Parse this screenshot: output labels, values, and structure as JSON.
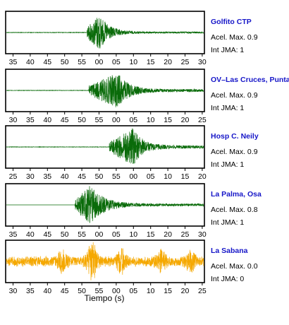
{
  "chart_data": {
    "type": "line",
    "xlabel": "Tiempo (s)",
    "grid": false,
    "panels": [
      {
        "station": "Golfito CTP",
        "acel_label": "Acel. Max. 0.9",
        "int_label": "Int JMA: 1",
        "trace_color": "#0a6b0a",
        "station_color": "#1616c8",
        "x_ticks": [
          "35",
          "40",
          "45",
          "50",
          "55",
          "00",
          "05",
          "10",
          "15",
          "20",
          "25",
          "30"
        ],
        "x_range": [
          "~31 s",
          "30 s"
        ],
        "envelope": {
          "onset_tick": 4.3,
          "peak_tick": 5.0,
          "peak": 0.95,
          "decay": 2.2,
          "pre": 0.012,
          "coda": 0.04
        }
      },
      {
        "station": "OV–Las Cruces, Puntar",
        "acel_label": "Acel. Max. 0.9",
        "int_label": "Int JMA: 1",
        "trace_color": "#0a6b0a",
        "station_color": "#1616c8",
        "x_ticks": [
          "30",
          "35",
          "40",
          "45",
          "50",
          "55",
          "00",
          "05",
          "10",
          "15",
          "20",
          "25"
        ],
        "envelope": {
          "onset_tick": 4.4,
          "peak_tick": 6.1,
          "peak": 0.9,
          "decay": 2.4,
          "pre": 0.01,
          "coda": 0.07
        }
      },
      {
        "station": "Hosp C. Neily",
        "acel_label": "Acel. Max. 0.9",
        "int_label": "Int JMA: 1",
        "trace_color": "#0a6b0a",
        "station_color": "#1616c8",
        "x_ticks": [
          "25",
          "30",
          "35",
          "40",
          "45",
          "50",
          "55",
          "00",
          "05",
          "10",
          "15",
          "20"
        ],
        "envelope": {
          "onset_tick": 5.6,
          "peak_tick": 7.0,
          "peak": 1.0,
          "decay": 2.0,
          "pre": 0.01,
          "coda": 0.08
        }
      },
      {
        "station": "La Palma, Osa",
        "acel_label": "Acel. Max. 0.8",
        "int_label": "Int JMA: 1",
        "trace_color": "#0a6b0a",
        "station_color": "#1616c8",
        "x_ticks": [
          "35",
          "40",
          "45",
          "50",
          "55",
          "00",
          "05",
          "10",
          "15",
          "20",
          "25",
          "30"
        ],
        "envelope": {
          "onset_tick": 3.6,
          "peak_tick": 4.5,
          "peak": 1.0,
          "decay": 3.0,
          "pre": 0.0,
          "coda": 0.06
        }
      },
      {
        "station": "La Sabana",
        "acel_label": "Acel. Max. 0.0",
        "int_label": "Int JMA: 0",
        "trace_color": "#f5a800",
        "station_color": "#1616c8",
        "x_ticks": [
          "30",
          "35",
          "40",
          "45",
          "50",
          "55",
          "00",
          "05",
          "10",
          "15",
          "20",
          "25"
        ],
        "envelope": {
          "noise": 0.28,
          "bursts": [
            [
              4.6,
              0.85
            ],
            [
              2.9,
              0.45
            ],
            [
              6.3,
              0.5
            ],
            [
              8.6,
              0.4
            ],
            [
              10.3,
              0.35
            ]
          ]
        }
      }
    ]
  }
}
